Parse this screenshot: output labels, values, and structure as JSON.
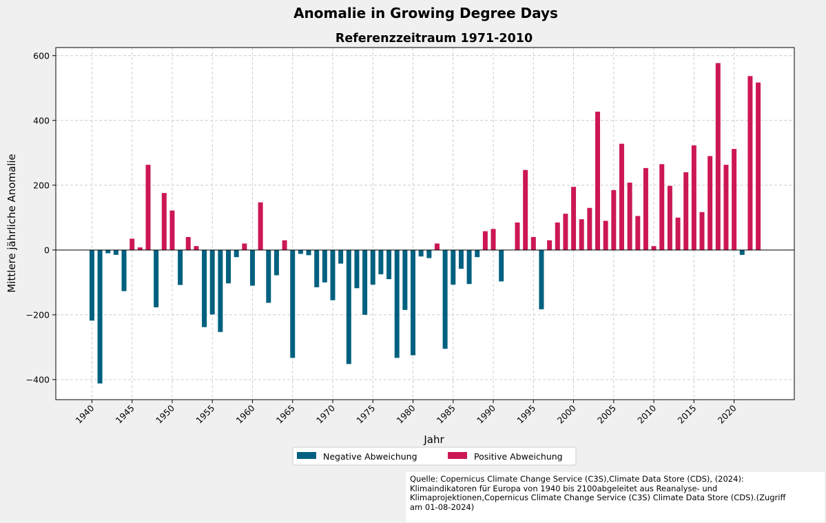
{
  "colors": {
    "negative": "#00607f",
    "positive": "#cc1756",
    "background": "#f0f0f0",
    "plot_background": "#ffffff",
    "grid": "#cccccc"
  },
  "chart_data": {
    "type": "bar",
    "suptitle": "Anomalie in Growing Degree Days",
    "title": "Referenzzeitraum 1971-2010",
    "xlabel": "Jahr",
    "ylabel": "Mittlere jährliche Anomalie",
    "xlim": [
      1935.5,
      2027.5
    ],
    "ylim": [
      -462,
      625
    ],
    "grid": true,
    "xticks": [
      1940,
      1945,
      1950,
      1955,
      1960,
      1965,
      1970,
      1975,
      1980,
      1985,
      1990,
      1995,
      2000,
      2005,
      2010,
      2015,
      2020
    ],
    "yticks": [
      -400,
      -200,
      0,
      200,
      400,
      600
    ],
    "ytick_labels": [
      "−400",
      "−200",
      "0",
      "200",
      "400",
      "600"
    ],
    "legend": {
      "placement": "below-center",
      "entries": [
        {
          "label": "Negative Abweichung",
          "color": "#00607f"
        },
        {
          "label": "Positive Abweichung",
          "color": "#cc1756"
        }
      ]
    },
    "years": [
      1940,
      1941,
      1942,
      1943,
      1944,
      1945,
      1946,
      1947,
      1948,
      1949,
      1950,
      1951,
      1952,
      1953,
      1954,
      1955,
      1956,
      1957,
      1958,
      1959,
      1960,
      1961,
      1962,
      1963,
      1964,
      1965,
      1966,
      1967,
      1968,
      1969,
      1970,
      1971,
      1972,
      1973,
      1974,
      1975,
      1976,
      1977,
      1978,
      1979,
      1980,
      1981,
      1982,
      1983,
      1984,
      1985,
      1986,
      1987,
      1988,
      1989,
      1990,
      1991,
      1992,
      1993,
      1994,
      1995,
      1996,
      1997,
      1998,
      1999,
      2000,
      2001,
      2002,
      2003,
      2004,
      2005,
      2006,
      2007,
      2008,
      2009,
      2010,
      2011,
      2012,
      2013,
      2014,
      2015,
      2016,
      2017,
      2018,
      2019,
      2020,
      2021,
      2022,
      2023
    ],
    "values": [
      -218,
      -412,
      -10,
      -15,
      -127,
      35,
      8,
      263,
      -177,
      176,
      122,
      -108,
      40,
      12,
      -238,
      -199,
      -253,
      -103,
      -22,
      20,
      -110,
      147,
      -163,
      -78,
      30,
      -333,
      -12,
      -16,
      -115,
      -100,
      -155,
      -42,
      -352,
      -118,
      -200,
      -107,
      -75,
      -90,
      -333,
      -185,
      -325,
      -20,
      -25,
      20,
      -305,
      -107,
      -58,
      -105,
      -22,
      58,
      65,
      -97,
      0,
      85,
      247,
      40,
      -183,
      30,
      85,
      112,
      195,
      95,
      130,
      427,
      90,
      185,
      328,
      208,
      105,
      253,
      12,
      265,
      198,
      100,
      240,
      323,
      117,
      290,
      577,
      263,
      312,
      -15,
      537,
      517
    ]
  },
  "source": {
    "lines": [
      "Quelle: Copernicus Climate Change Service (C3S),Climate Data Store (CDS), (2024):",
      "Klimaindikatoren für Europa von 1940 bis 2100abgeleitet aus Reanalyse- und",
      "Klimaprojektionen,Copernicus Climate Change Service (C3S) Climate Data Store (CDS).(Zugriff",
      "am 01-08-2024)"
    ]
  }
}
